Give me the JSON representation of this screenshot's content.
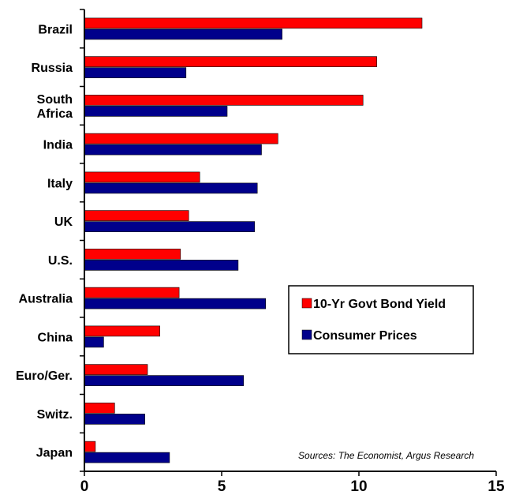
{
  "chart_data": {
    "type": "bar",
    "orientation": "horizontal",
    "categories": [
      "Brazil",
      "Russia",
      "South Africa",
      "India",
      "Italy",
      "UK",
      "U.S.",
      "Australia",
      "China",
      "Euro/Ger.",
      "Switz.",
      "Japan"
    ],
    "category_lines": [
      [
        "Brazil"
      ],
      [
        "Russia"
      ],
      [
        "South",
        "Africa"
      ],
      [
        "India"
      ],
      [
        "Italy"
      ],
      [
        "UK"
      ],
      [
        "U.S."
      ],
      [
        "Australia"
      ],
      [
        "China"
      ],
      [
        "Euro/Ger."
      ],
      [
        "Switz."
      ],
      [
        "Japan"
      ]
    ],
    "series": [
      {
        "name": "10-Yr Govt Bond Yield",
        "color": "#ff0000",
        "values": [
          12.3,
          10.65,
          10.15,
          7.05,
          4.2,
          3.8,
          3.5,
          3.45,
          2.75,
          2.3,
          1.1,
          0.4
        ]
      },
      {
        "name": "Consumer Prices",
        "color": "#00008b",
        "values": [
          7.2,
          3.7,
          5.2,
          6.45,
          6.3,
          6.2,
          5.6,
          6.6,
          0.7,
          5.8,
          2.2,
          3.1
        ]
      }
    ],
    "xlim": [
      0,
      15
    ],
    "xticks": [
      "0",
      "5",
      "10",
      "15"
    ],
    "legend_position": "right",
    "grid": false,
    "annotation": "Sources: The Economist, Argus Research"
  }
}
